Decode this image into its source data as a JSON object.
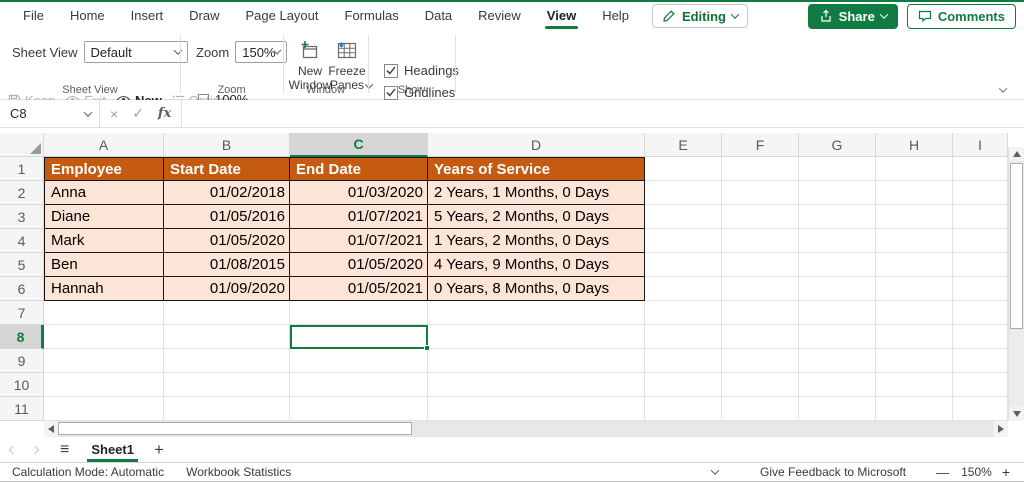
{
  "chrome": {
    "tabs": [
      "File",
      "Home",
      "Insert",
      "Draw",
      "Page Layout",
      "Formulas",
      "Data",
      "Review",
      "View",
      "Help"
    ],
    "active_tab": "View",
    "editing": "Editing",
    "share": "Share",
    "comments": "Comments"
  },
  "ribbon": {
    "sheet_view": {
      "field_label": "Sheet View",
      "field_value": "Default",
      "keep": "Keep",
      "exit": "Exit",
      "new": "New",
      "options": "Options",
      "group": "Sheet View"
    },
    "zoom": {
      "field_label": "Zoom",
      "field_value": "150%",
      "zoom_100": "100%",
      "group": "Zoom"
    },
    "window": {
      "new_window": "New Window",
      "freeze_panes": "Freeze Panes",
      "group": "Window"
    },
    "show": {
      "headings": "Headings",
      "gridlines": "Gridlines",
      "group": "Show"
    }
  },
  "formula_bar": {
    "name_box": "C8",
    "fx": "fx",
    "formula": ""
  },
  "sheet": {
    "columns": [
      "A",
      "B",
      "C",
      "D",
      "E",
      "F",
      "G",
      "H",
      "I"
    ],
    "rows": [
      "1",
      "2",
      "3",
      "4",
      "5",
      "6",
      "7",
      "8",
      "9",
      "10",
      "11"
    ],
    "selected_column": "C",
    "selected_row": "8",
    "selected_cell": "C8",
    "table": {
      "headers": [
        "Employee",
        "Start Date",
        "End Date",
        "Years of Service"
      ],
      "rows": [
        {
          "employee": "Anna",
          "start": "01/02/2018",
          "end": "01/03/2020",
          "service": "2 Years, 1 Months, 0 Days"
        },
        {
          "employee": "Diane",
          "start": "01/05/2016",
          "end": "01/07/2021",
          "service": "5 Years, 2 Months, 0 Days"
        },
        {
          "employee": "Mark",
          "start": "01/05/2020",
          "end": "01/07/2021",
          "service": "1 Years, 2 Months, 0 Days"
        },
        {
          "employee": "Ben",
          "start": "01/08/2015",
          "end": "01/05/2020",
          "service": "4 Years, 9 Months, 0 Days"
        },
        {
          "employee": "Hannah",
          "start": "01/09/2020",
          "end": "01/05/2021",
          "service": "0 Years, 8 Months, 0 Days"
        }
      ]
    }
  },
  "sheet_tabs": {
    "name": "Sheet1"
  },
  "status_bar": {
    "calc_mode": "Calculation Mode: Automatic",
    "workbook_stats": "Workbook Statistics",
    "feedback": "Give Feedback to Microsoft",
    "zoom_out": "—",
    "zoom_level": "150%",
    "zoom_in": "+"
  },
  "colors": {
    "accent_green": "#107C41",
    "table_header_bg": "#C55A11",
    "table_row_bg": "#FCE4D6"
  }
}
